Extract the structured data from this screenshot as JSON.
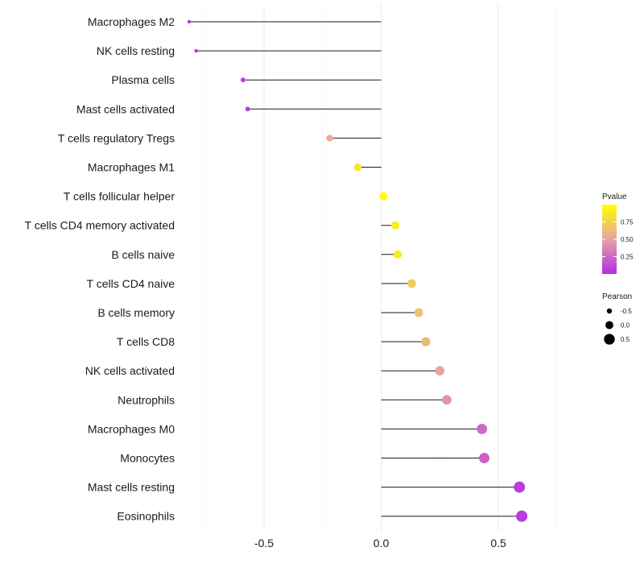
{
  "chart_data": {
    "type": "lollipop",
    "title": "",
    "xlabel": "",
    "ylabel": "",
    "xlim": [
      -0.83,
      0.84
    ],
    "x_ticks": [
      -0.5,
      0.0,
      0.5
    ],
    "x_tick_labels": [
      "-0.5",
      "0.0",
      "0.5"
    ],
    "points": [
      {
        "label": "Macrophages M2",
        "value": -0.82,
        "pvalue": 0.01
      },
      {
        "label": "NK cells resting",
        "value": -0.79,
        "pvalue": 0.02
      },
      {
        "label": "Plasma cells",
        "value": -0.59,
        "pvalue": 0.06
      },
      {
        "label": "Mast cells activated",
        "value": -0.57,
        "pvalue": 0.08
      },
      {
        "label": "T cells regulatory  Tregs",
        "value": -0.22,
        "pvalue": 0.55
      },
      {
        "label": "Macrophages M1",
        "value": -0.1,
        "pvalue": 0.85
      },
      {
        "label": "T cells follicular helper",
        "value": 0.01,
        "pvalue": 0.98
      },
      {
        "label": "T cells CD4 memory activated",
        "value": 0.06,
        "pvalue": 0.9
      },
      {
        "label": "B cells naive",
        "value": 0.07,
        "pvalue": 0.88
      },
      {
        "label": "T cells CD4 naive",
        "value": 0.13,
        "pvalue": 0.72
      },
      {
        "label": "B cells memory",
        "value": 0.16,
        "pvalue": 0.66
      },
      {
        "label": "T cells CD8",
        "value": 0.19,
        "pvalue": 0.62
      },
      {
        "label": "NK cells activated",
        "value": 0.25,
        "pvalue": 0.5
      },
      {
        "label": "Neutrophils",
        "value": 0.28,
        "pvalue": 0.45
      },
      {
        "label": "Macrophages M0",
        "value": 0.43,
        "pvalue": 0.25
      },
      {
        "label": "Monocytes",
        "value": 0.44,
        "pvalue": 0.22
      },
      {
        "label": "Mast cells resting",
        "value": 0.59,
        "pvalue": 0.07
      },
      {
        "label": "Eosinophils",
        "value": 0.6,
        "pvalue": 0.06
      }
    ],
    "legend": {
      "color": {
        "title": "Pvalue",
        "ticks": [
          0.75,
          0.5,
          0.25
        ],
        "tick_labels": [
          "0.75",
          "0.50",
          "0.25"
        ],
        "low_color": "#b32ee6",
        "mid_color": "#e6a3a3",
        "high_color": "#ffff00",
        "range": [
          0.0,
          1.0
        ]
      },
      "size": {
        "title": "Pearson",
        "entries": [
          {
            "label": "-0.5",
            "value": -0.5
          },
          {
            "label": "0.0",
            "value": 0.0
          },
          {
            "label": "0.5",
            "value": 0.5
          }
        ]
      },
      "position": "right"
    }
  }
}
